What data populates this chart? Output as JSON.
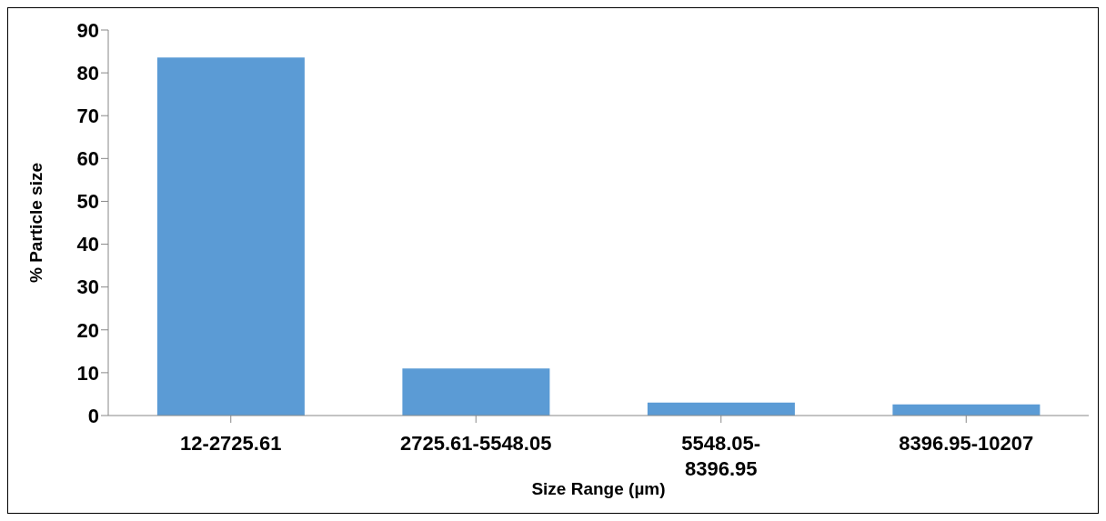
{
  "chart_data": {
    "type": "bar",
    "xlabel": "Size Range (µm)",
    "ylabel": "% Particle size",
    "categories": [
      "12-2725.61",
      "2725.61-5548.05",
      "5548.05-\n8396.95",
      "8396.95-10207"
    ],
    "values": [
      83.6,
      11.0,
      3.0,
      2.6
    ],
    "color": "#5b9bd5",
    "ylim": [
      0,
      90
    ],
    "yticks": [
      0,
      10,
      20,
      30,
      40,
      50,
      60,
      70,
      80,
      90
    ],
    "grid": false,
    "legend": false
  }
}
